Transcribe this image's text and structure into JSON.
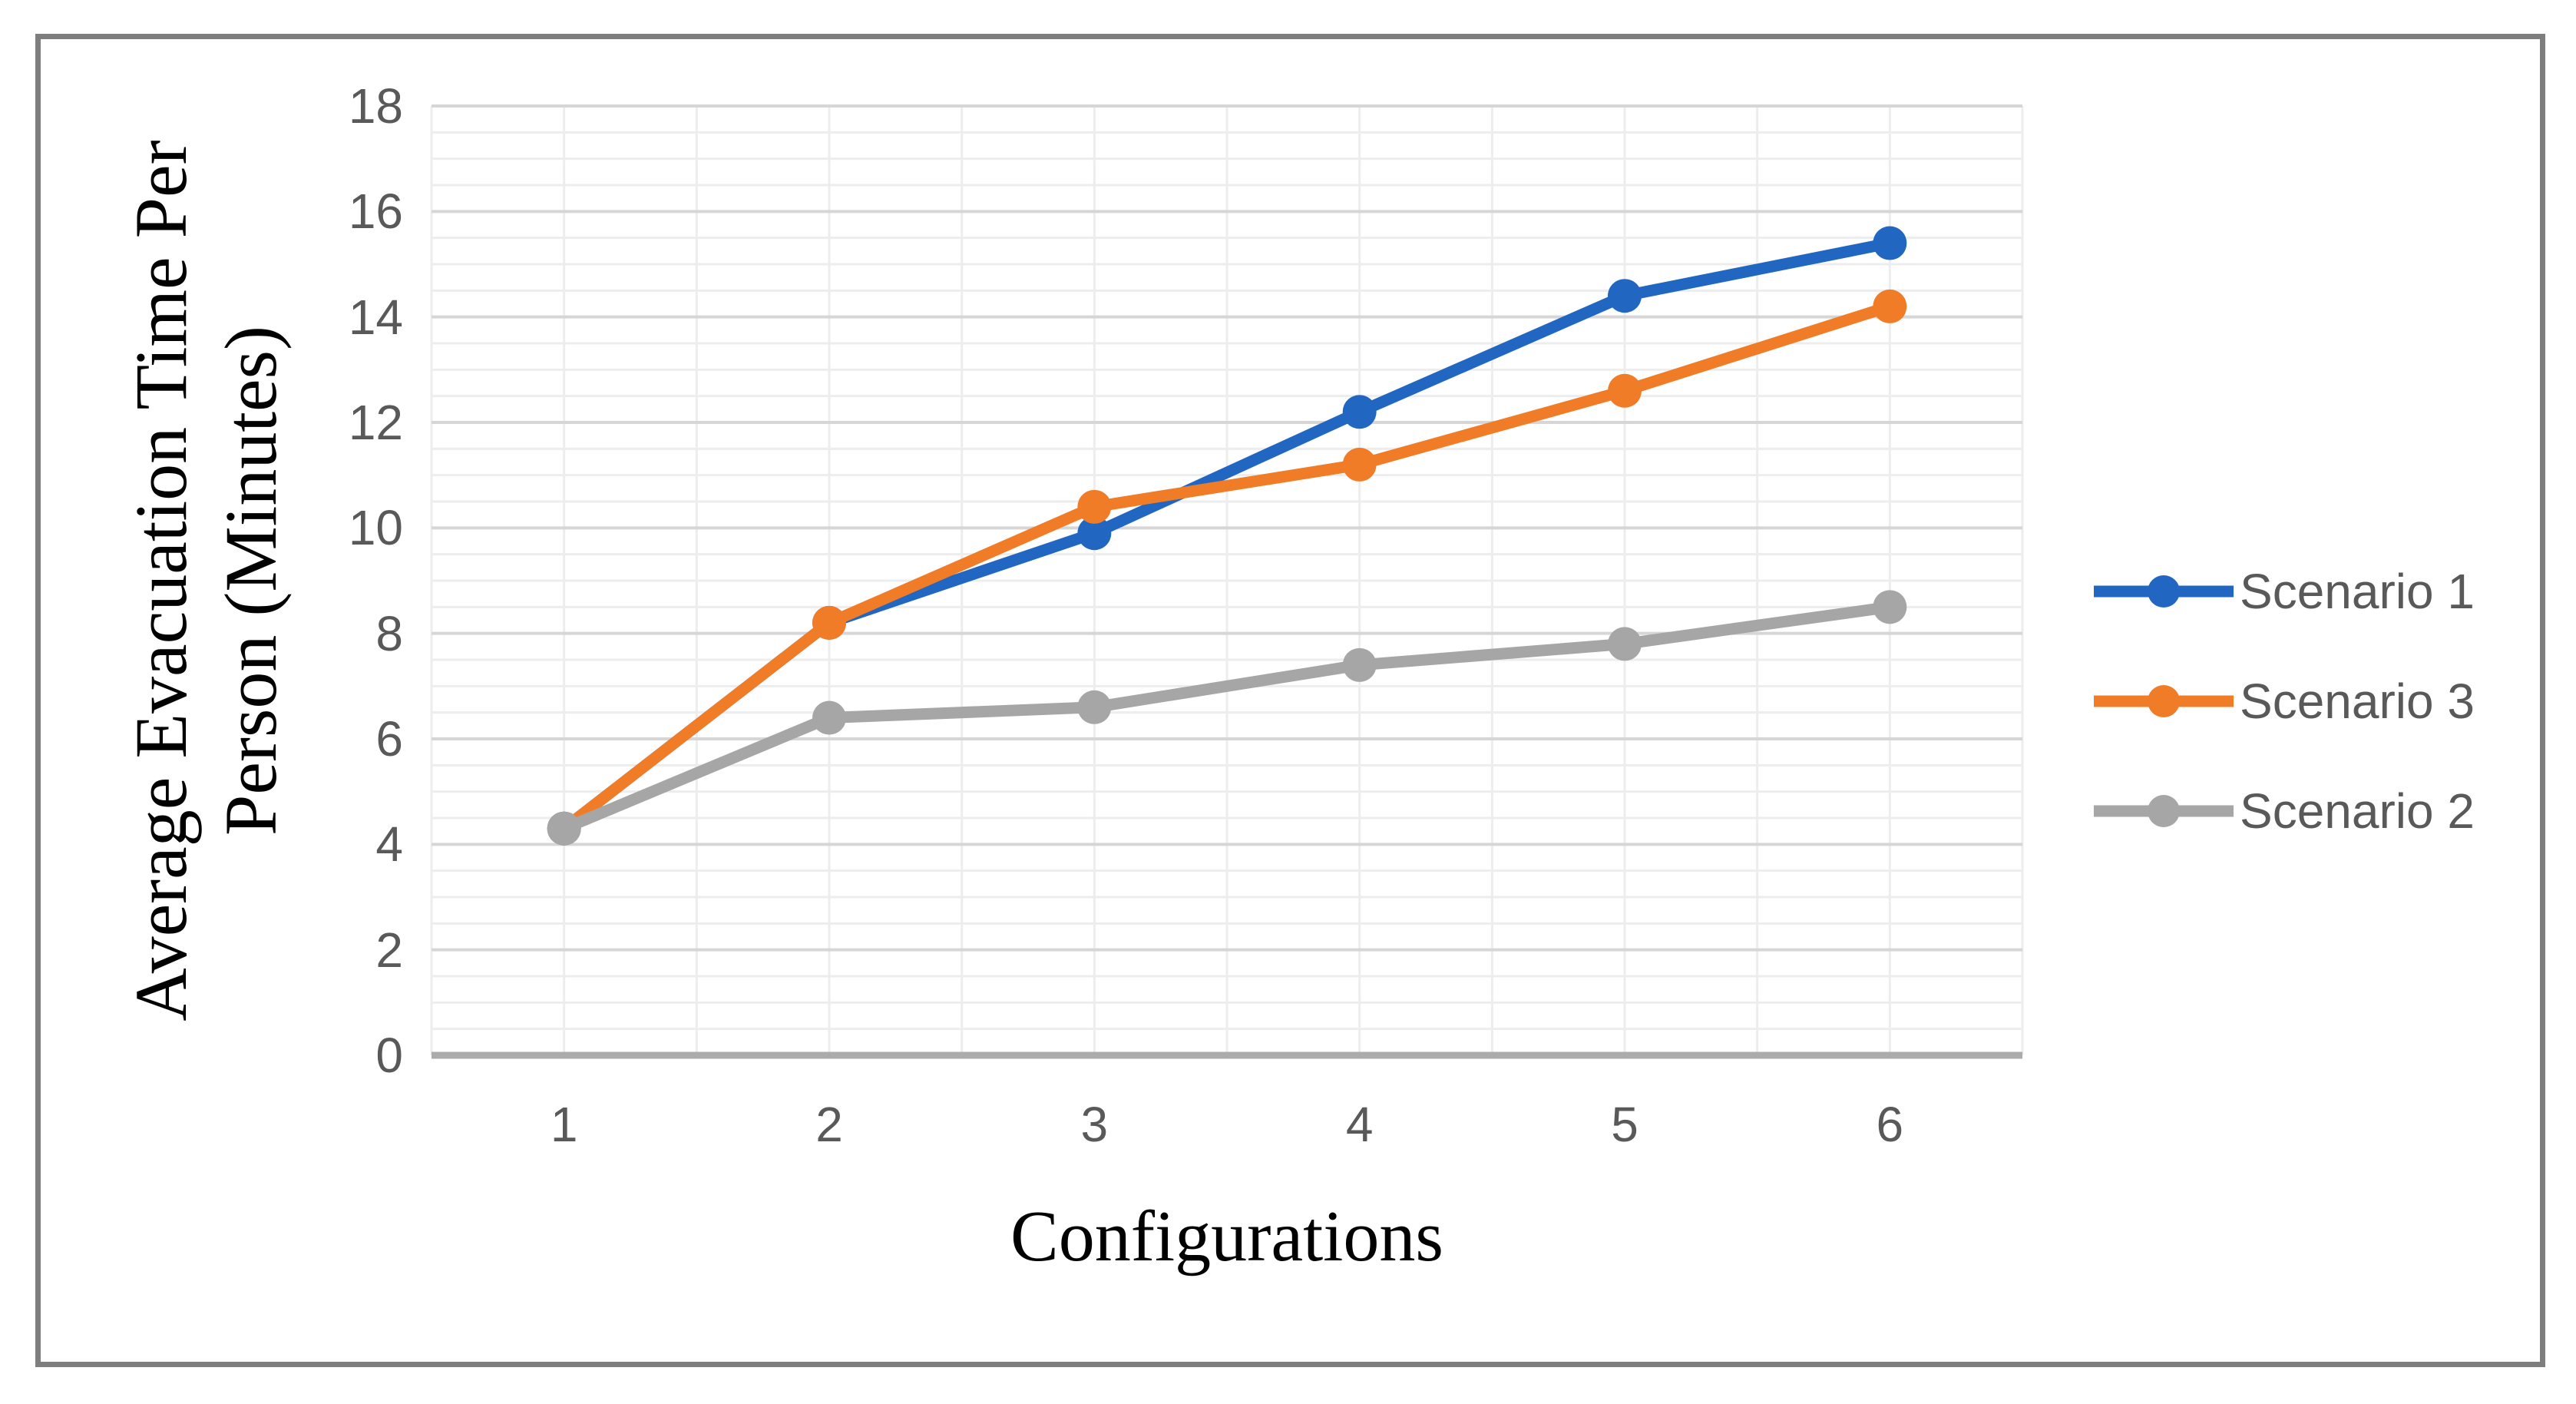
{
  "chart_data": {
    "type": "line",
    "title": "",
    "xlabel": "Configurations",
    "ylabel": "Average Evacuation Time Per Person (Minutes)",
    "ylabel_lines": [
      "Average Evacuation Time Per",
      "Person (Minutes)"
    ],
    "x": [
      1,
      2,
      3,
      4,
      5,
      6
    ],
    "x_tick_labels": [
      "1",
      "2",
      "3",
      "4",
      "5",
      "6"
    ],
    "y_tick_labels": [
      "0",
      "2",
      "4",
      "6",
      "8",
      "10",
      "12",
      "14",
      "16",
      "18"
    ],
    "series": [
      {
        "name": "Scenario 1",
        "color": "#2167C2",
        "values": [
          4.3,
          8.2,
          9.9,
          12.2,
          14.4,
          15.4
        ]
      },
      {
        "name": "Scenario 3",
        "color": "#F07C28",
        "values": [
          4.3,
          8.2,
          10.4,
          11.2,
          12.6,
          14.2
        ]
      },
      {
        "name": "Scenario 2",
        "color": "#A6A6A6",
        "values": [
          4.3,
          6.4,
          6.6,
          7.4,
          7.8,
          8.5
        ]
      }
    ],
    "ylim": [
      0,
      18
    ],
    "y_tick_step": 2,
    "y_minor_step": 0.5,
    "x_minor_step": 0.5,
    "x_padding": 0.5,
    "grid": true,
    "legend_position": "right",
    "colors": {
      "grid_minor": "#EDEDED",
      "grid_major": "#D6D6D6",
      "axis_line": "#ABABAB",
      "tick_text": "#595959",
      "title_text": "#000000",
      "frame_border": "#7E7E7E"
    }
  }
}
